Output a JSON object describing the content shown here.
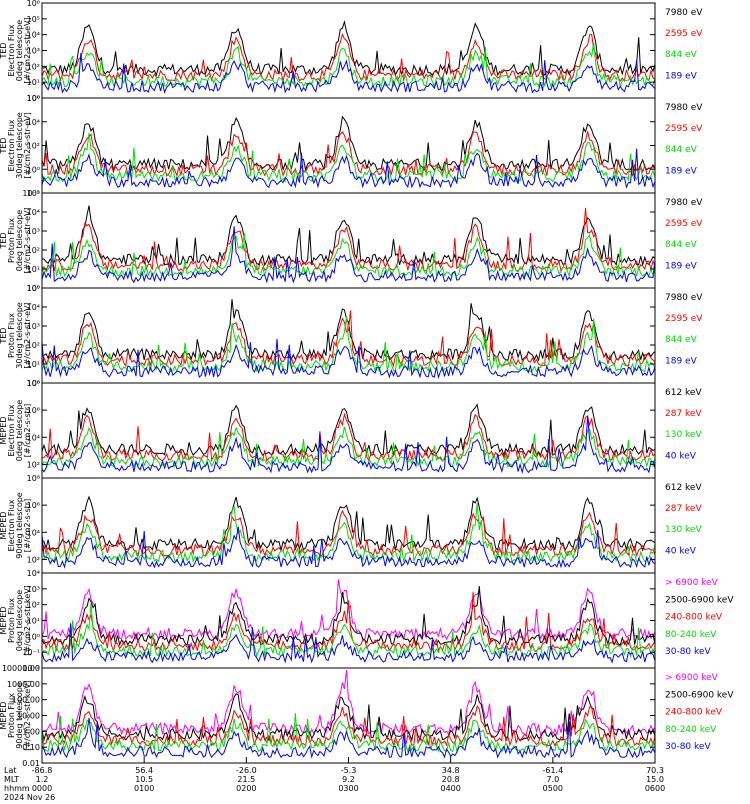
{
  "chart_data": {
    "type": "line",
    "x_axis": {
      "rows": [
        {
          "label": "Lat",
          "values": [
            "-86.8",
            "56.4",
            "-26.0",
            "-5.3",
            "34.8",
            "-61.4",
            "70.3"
          ]
        },
        {
          "label": "MLT",
          "values": [
            "1.2",
            "10.5",
            "21.5",
            "9.2",
            "20.8",
            "7.0",
            "15.0"
          ]
        },
        {
          "label": "hhmm",
          "values": [
            "0000",
            "0100",
            "0200",
            "0300",
            "0400",
            "0500",
            "0600"
          ]
        }
      ],
      "date": "2024 Nov 26",
      "range_hours": [
        0,
        6
      ]
    },
    "panels": [
      {
        "ylabel": [
          "TED",
          "Electron Flux",
          "0deg telescope",
          "[#/cm2-s-str-eV]"
        ],
        "scale": "log",
        "ylim_exp": [
          0,
          6
        ],
        "ticks": [
          {
            "e": 0,
            "t": "10⁰"
          },
          {
            "e": 1,
            "t": "10¹"
          },
          {
            "e": 2,
            "t": "10²"
          },
          {
            "e": 3,
            "t": "10³"
          },
          {
            "e": 4,
            "t": "10⁴"
          },
          {
            "e": 5,
            "t": "10⁵"
          },
          {
            "e": 6,
            "t": "10⁶"
          }
        ],
        "legend": [
          {
            "name": "7980 eV",
            "color": "#000000"
          },
          {
            "name": "2595 eV",
            "color": "#ff0000"
          },
          {
            "name": "844 eV",
            "color": "#00dd00"
          },
          {
            "name": "189 eV",
            "color": "#0000ff"
          }
        ]
      },
      {
        "ylabel": [
          "TED",
          "Electron Flux",
          "30deg telescope",
          "[#/cm2-s-str-eV]"
        ],
        "scale": "log",
        "ylim_exp": [
          -2,
          6
        ],
        "ticks": [
          {
            "e": -2,
            "t": "10⁻²"
          },
          {
            "e": 0,
            "t": "10⁰"
          },
          {
            "e": 2,
            "t": "10²"
          },
          {
            "e": 4,
            "t": "10⁴"
          },
          {
            "e": 6,
            "t": "10⁶"
          }
        ],
        "legend": [
          {
            "name": "7980 eV",
            "color": "#000000"
          },
          {
            "name": "2595 eV",
            "color": "#ff0000"
          },
          {
            "name": "844 eV",
            "color": "#00dd00"
          },
          {
            "name": "189 eV",
            "color": "#0000ff"
          }
        ]
      },
      {
        "ylabel": [
          "TED",
          "Proton Flux",
          "0deg telescope",
          "[#/cm2-s-str-eV]"
        ],
        "scale": "log",
        "ylim_exp": [
          0,
          5
        ],
        "ticks": [
          {
            "e": 0,
            "t": "10⁰"
          },
          {
            "e": 1,
            "t": "10¹"
          },
          {
            "e": 2,
            "t": "10²"
          },
          {
            "e": 3,
            "t": "10³"
          },
          {
            "e": 4,
            "t": "10⁴"
          },
          {
            "e": 5,
            "t": "10⁵"
          }
        ],
        "legend": [
          {
            "name": "7980 eV",
            "color": "#000000"
          },
          {
            "name": "2595 eV",
            "color": "#ff0000"
          },
          {
            "name": "844 eV",
            "color": "#00dd00"
          },
          {
            "name": "189 eV",
            "color": "#0000ff"
          }
        ]
      },
      {
        "ylabel": [
          "TED",
          "Proton Flux",
          "30deg telescope",
          "[#/cm2-s-str-eV]"
        ],
        "scale": "log",
        "ylim_exp": [
          0,
          5
        ],
        "ticks": [
          {
            "e": 0,
            "t": "10⁰"
          },
          {
            "e": 1,
            "t": "10¹"
          },
          {
            "e": 2,
            "t": "10²"
          },
          {
            "e": 3,
            "t": "10³"
          },
          {
            "e": 4,
            "t": "10⁴"
          },
          {
            "e": 5,
            "t": "10⁵"
          }
        ],
        "legend": [
          {
            "name": "7980 eV",
            "color": "#000000"
          },
          {
            "name": "2595 eV",
            "color": "#ff0000"
          },
          {
            "name": "844 eV",
            "color": "#00dd00"
          },
          {
            "name": "189 eV",
            "color": "#0000ff"
          }
        ]
      },
      {
        "ylabel": [
          "MEPED",
          "Electron Flux",
          "0deg telescope",
          "[#/cm2-s-str]"
        ],
        "scale": "log",
        "ylim_exp": [
          1,
          8
        ],
        "ticks": [
          {
            "e": 2,
            "t": "10²"
          },
          {
            "e": 4,
            "t": "10⁴"
          },
          {
            "e": 6,
            "t": "10⁶"
          },
          {
            "e": 8,
            "t": "10⁸"
          }
        ],
        "legend": [
          {
            "name": "612 keV",
            "color": "#000000"
          },
          {
            "name": "287 keV",
            "color": "#ff0000"
          },
          {
            "name": "130 keV",
            "color": "#00dd00"
          },
          {
            "name": "40 keV",
            "color": "#0000ff"
          }
        ]
      },
      {
        "ylabel": [
          "MEPED",
          "Electron Flux",
          "90deg telescope",
          "[#/cm2-s-str]"
        ],
        "scale": "log",
        "ylim_exp": [
          1,
          8
        ],
        "ticks": [
          {
            "e": 2,
            "t": "10²"
          },
          {
            "e": 4,
            "t": "10⁴"
          },
          {
            "e": 6,
            "t": "10⁶"
          },
          {
            "e": 8,
            "t": "10⁸"
          }
        ],
        "legend": [
          {
            "name": "612 keV",
            "color": "#000000"
          },
          {
            "name": "287 keV",
            "color": "#ff0000"
          },
          {
            "name": "130 keV",
            "color": "#00dd00"
          },
          {
            "name": "40 keV",
            "color": "#0000ff"
          }
        ]
      },
      {
        "ylabel": [
          "MEPED",
          "Proton Flux",
          "0deg telescope",
          "[#/cm2-s-str-keV]"
        ],
        "scale": "log",
        "ylim_exp": [
          -2,
          4
        ],
        "ticks": [
          {
            "e": -2,
            "t": "10⁻²"
          },
          {
            "e": -1,
            "t": "10⁻¹"
          },
          {
            "e": 0,
            "t": "10⁰"
          },
          {
            "e": 1,
            "t": "10¹"
          },
          {
            "e": 2,
            "t": "10²"
          },
          {
            "e": 3,
            "t": "10³"
          },
          {
            "e": 4,
            "t": "10⁴"
          }
        ],
        "legend": [
          {
            "name": "> 6900 keV",
            "color": "#ff00ff"
          },
          {
            "name": "2500-6900 keV",
            "color": "#000000"
          },
          {
            "name": "240-800 keV",
            "color": "#ff0000"
          },
          {
            "name": "80-240 keV",
            "color": "#00dd00"
          },
          {
            "name": "30-80 keV",
            "color": "#0000ff"
          }
        ]
      },
      {
        "ylabel": [
          "MEPED",
          "Proton Flux",
          "90deg telescope",
          "[#/cm2-s-str-keV]"
        ],
        "scale": "log",
        "ylim_exp": [
          -2,
          4
        ],
        "ticks": [
          {
            "e": -2,
            "t": "0.01"
          },
          {
            "e": -1,
            "t": "0.10"
          },
          {
            "e": 0,
            "t": "1.00"
          },
          {
            "e": 1,
            "t": "10.00"
          },
          {
            "e": 2,
            "t": "100.00"
          },
          {
            "e": 3,
            "t": "1000.00"
          },
          {
            "e": 4,
            "t": "10000.00"
          }
        ],
        "legend": [
          {
            "name": "> 6900 keV",
            "color": "#ff00ff"
          },
          {
            "name": "2500-6900 keV",
            "color": "#000000"
          },
          {
            "name": "240-800 keV",
            "color": "#ff0000"
          },
          {
            "name": "80-240 keV",
            "color": "#00dd00"
          },
          {
            "name": "30-80 keV",
            "color": "#0000ff"
          }
        ]
      }
    ],
    "passes_hours": [
      0.45,
      1.9,
      2.95,
      4.25,
      5.35
    ]
  }
}
